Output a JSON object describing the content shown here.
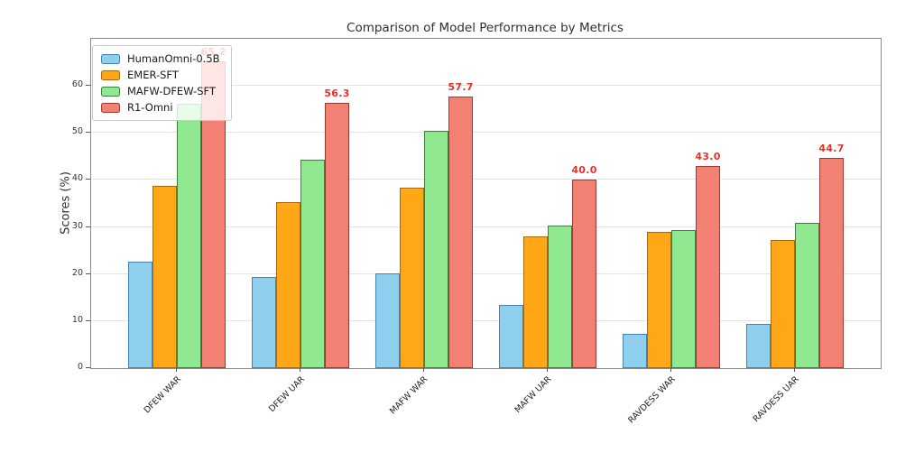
{
  "chart_data": {
    "type": "bar",
    "title": "Comparison of Model Performance by Metrics",
    "xlabel": "",
    "ylabel": "Scores (%)",
    "ylim": [
      0,
      70
    ],
    "yticks": [
      0,
      10,
      20,
      30,
      40,
      50,
      60
    ],
    "grid": "horizontal",
    "legend_position": "upper-left",
    "categories": [
      "DFEW WAR",
      "DFEW UAR",
      "MAFW WAR",
      "MAFW UAR",
      "RAVDESS WAR",
      "RAVDESS UAR"
    ],
    "series": [
      {
        "name": "HumanOmni-0.5B",
        "color": "#8DCFEC",
        "edge": "#4682B4",
        "values": [
          22.6,
          19.4,
          20.2,
          13.5,
          7.3,
          9.4
        ]
      },
      {
        "name": "EMER-SFT",
        "color": "#FFA716",
        "edge": "#A8690A",
        "values": [
          38.7,
          35.3,
          38.4,
          28.0,
          29.0,
          27.2
        ]
      },
      {
        "name": "MAFW-DFEW-SFT",
        "color": "#90E890",
        "edge": "#3E7E3E",
        "values": [
          56.1,
          44.3,
          50.4,
          30.4,
          29.3,
          30.8
        ]
      },
      {
        "name": "R1-Omni",
        "color": "#F28173",
        "edge": "#993B31",
        "values": [
          65.2,
          56.3,
          57.7,
          40.0,
          43.0,
          44.7
        ],
        "labels": [
          "65.2",
          "56.3",
          "57.7",
          "40.0",
          "43.0",
          "44.7"
        ],
        "label_color": "#E4312B"
      }
    ]
  }
}
